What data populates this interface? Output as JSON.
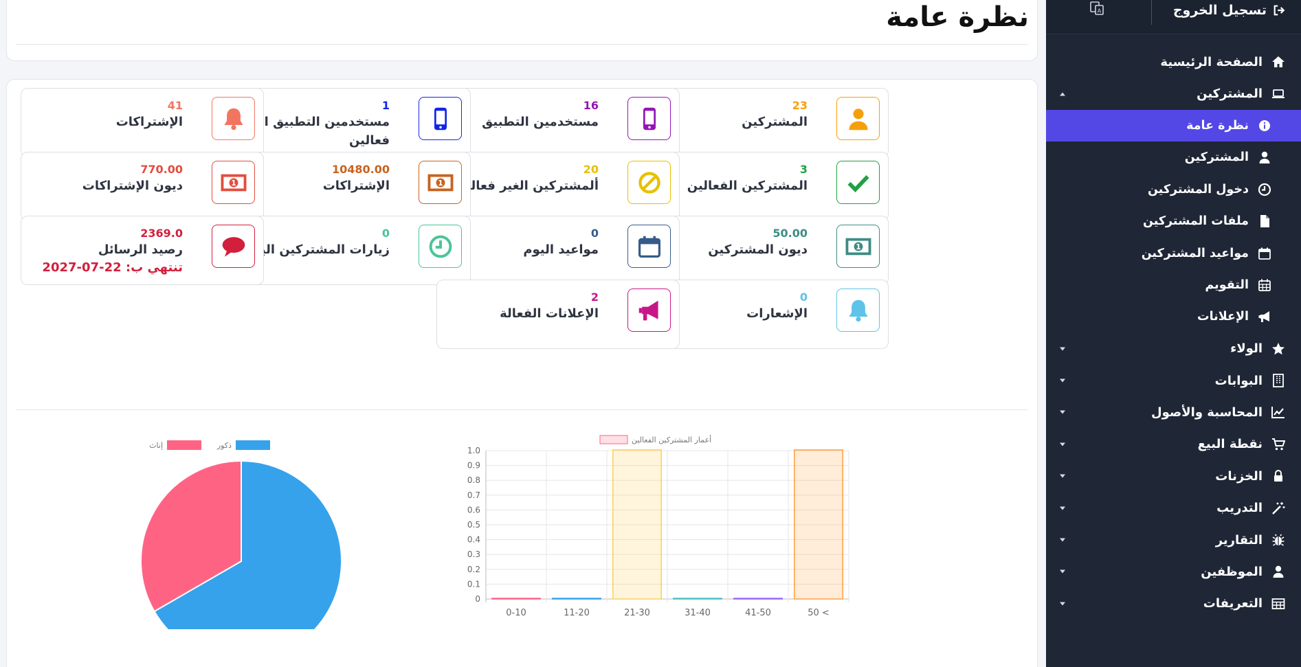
{
  "colors": {
    "sidebar_bg": "#1f2736",
    "active": "#5348e6",
    "pie_male": "#36a2eb",
    "pie_female": "#ff6384"
  },
  "sidebar": {
    "logout_label": "تسجيل الخروج",
    "items": [
      {
        "label": "الصفحة الرئيسية",
        "icon": "home-icon"
      },
      {
        "label": "المشتركين",
        "icon": "laptop-icon",
        "caret": "up"
      },
      {
        "label": "نظرة عامة",
        "icon": "info-circle-icon",
        "sub": true,
        "active": true
      },
      {
        "label": "المشتركين",
        "icon": "user-icon",
        "sub": true
      },
      {
        "label": "دخول المشتركين",
        "icon": "clock-icon",
        "sub": true
      },
      {
        "label": "ملفات المشتركين",
        "icon": "file-icon",
        "sub": true
      },
      {
        "label": "مواعيد المشتركين",
        "icon": "calendar-icon",
        "sub": true
      },
      {
        "label": "التقويم",
        "icon": "calendar-grid-icon",
        "sub": true
      },
      {
        "label": "الإعلانات",
        "icon": "bullhorn-icon",
        "sub": true
      },
      {
        "label": "الولاء",
        "icon": "star-icon",
        "caret": "down"
      },
      {
        "label": "البوابات",
        "icon": "building-icon",
        "caret": "down"
      },
      {
        "label": "المحاسبة والأصول",
        "icon": "chart-line-icon",
        "caret": "down"
      },
      {
        "label": "نقطة البيع",
        "icon": "cart-icon",
        "caret": "down"
      },
      {
        "label": "الخزنات",
        "icon": "lock-icon",
        "caret": "down"
      },
      {
        "label": "التدريب",
        "icon": "magic-wand-icon",
        "caret": "down"
      },
      {
        "label": "التقارير",
        "icon": "bug-icon",
        "caret": "down"
      },
      {
        "label": "الموظفين",
        "icon": "user-icon",
        "caret": "down"
      },
      {
        "label": "التعريفات",
        "icon": "table-icon",
        "caret": "down"
      }
    ]
  },
  "header": {
    "title": "نظرة عامة"
  },
  "stats": [
    {
      "value": "23",
      "label": "المشتركين",
      "icon": "user-icon",
      "color": "#f5a00a"
    },
    {
      "value": "16",
      "label": "مستخدمين التطبيق",
      "icon": "mobile-icon",
      "color": "#9315b8"
    },
    {
      "value": "1",
      "label": "مستخدمين التطبيق الغير فعالين",
      "icon": "mobile-icon",
      "color": "#1226e6"
    },
    {
      "value": "41",
      "label": "الإشتراكات",
      "icon": "bell-icon",
      "color": "#f2765f"
    },
    {
      "value": "3",
      "label": "المشتركين الفعالين",
      "icon": "check-icon",
      "color": "#22a043"
    },
    {
      "value": "20",
      "label": "ألمشتركين الغير فعالين",
      "icon": "ban-icon",
      "color": "#e8c000"
    },
    {
      "value": "10480.00",
      "label": "الإشتراكات",
      "icon": "money-icon",
      "color": "#c9621e"
    },
    {
      "value": "770.00",
      "label": "ديون الإشتراكات",
      "icon": "money-icon",
      "color": "#e34d3e"
    },
    {
      "value": "50.00",
      "label": "ديون المشتركين",
      "icon": "money-icon",
      "color": "#3e8c84"
    },
    {
      "value": "0",
      "label": "مواعيد اليوم",
      "icon": "calendar-icon",
      "color": "#365b8a"
    },
    {
      "value": "0",
      "label": "زيارات المشتركين اليوم",
      "icon": "clock-icon",
      "color": "#4ac597"
    },
    {
      "value": "2369.0",
      "label": "رصيد الرسائل",
      "icon": "comment-icon",
      "color": "#d21f3c",
      "extra": "تنتهي ب: 22-07-2027"
    },
    {
      "value": "0",
      "label": "الإشعارات",
      "icon": "bell-icon",
      "color": "#5fc2e8"
    },
    {
      "value": "2",
      "label": "الإعلانات الفعالة",
      "icon": "bullhorn-icon",
      "color": "#c8168a"
    }
  ],
  "chart_data": [
    {
      "type": "bar",
      "legend": [
        "أعمار المشتركين الفعالين"
      ],
      "legend_position": "top",
      "categories": [
        "0-10",
        "11-20",
        "21-30",
        "31-40",
        "41-50",
        "50 <"
      ],
      "series": [
        {
          "name": "أعمار المشتركين الفعالين",
          "values": [
            0,
            0,
            1,
            0,
            0,
            1
          ]
        }
      ],
      "bar_colors": [
        "#ff6384",
        "#36a2eb",
        "#ffce56",
        "#4bc0c0",
        "#9966ff",
        "#ff9f40"
      ],
      "yticks": [
        "0",
        "0.1",
        "0.2",
        "0.3",
        "0.4",
        "0.5",
        "0.6",
        "0.7",
        "0.8",
        "0.9",
        "1.0"
      ],
      "ylim": [
        0,
        1
      ],
      "grid": true
    },
    {
      "type": "pie",
      "legend_position": "top",
      "slices": [
        {
          "label": "ذكور",
          "value": 2,
          "color": "#36a2eb"
        },
        {
          "label": "إناث",
          "value": 1,
          "color": "#ff6384"
        }
      ]
    }
  ]
}
